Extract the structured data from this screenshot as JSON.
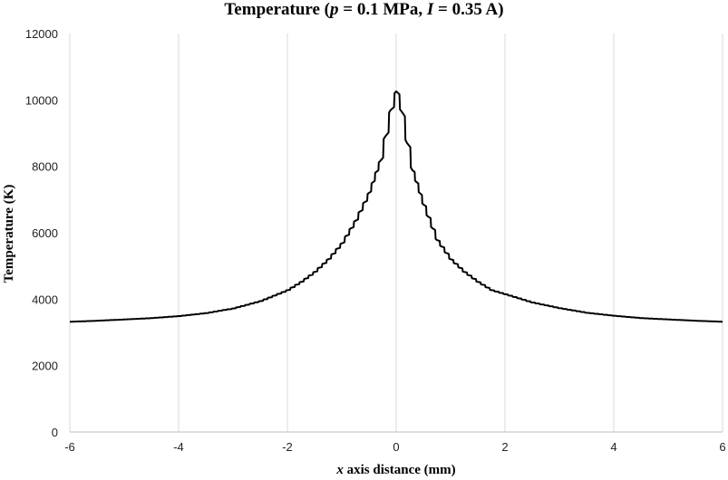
{
  "chart_data": {
    "type": "line",
    "title": {
      "prefix": "Temperature  (",
      "p_symbol": "p",
      "p_part": " = 0.1 MPa, ",
      "i_symbol": "I",
      "i_part": " = 0.35 A)"
    },
    "xlabel": {
      "symbol": "x",
      "text": " axis distance (mm)"
    },
    "ylabel": "Temperature (K)",
    "xlim": [
      -6,
      6
    ],
    "ylim": [
      0,
      12000
    ],
    "x_ticks": [
      -6,
      -4,
      -2,
      0,
      2,
      4,
      6
    ],
    "y_ticks": [
      0,
      2000,
      4000,
      6000,
      8000,
      10000,
      12000
    ],
    "grid": "vertical",
    "legend": "none",
    "line_color": "#000000",
    "series": [
      {
        "x": [
          -6,
          -5.5,
          -5,
          -4.5,
          -4,
          -3.5,
          -3,
          -2.5,
          -2,
          -1.75,
          -1.5,
          -1.25,
          -1,
          -0.75,
          -0.5,
          -0.3,
          -0.2,
          -0.1,
          0,
          0.1,
          0.2,
          0.3,
          0.5,
          0.75,
          1,
          1.25,
          1.5,
          1.75,
          2,
          2.5,
          3,
          3.5,
          4,
          4.5,
          5,
          5.5,
          6
        ],
        "y": [
          3320,
          3350,
          3390,
          3430,
          3490,
          3580,
          3720,
          3940,
          4270,
          4520,
          4820,
          5200,
          5680,
          6360,
          7200,
          8150,
          8900,
          9700,
          10260,
          9650,
          8700,
          7880,
          6850,
          5780,
          5200,
          4820,
          4520,
          4270,
          4150,
          3900,
          3730,
          3590,
          3500,
          3430,
          3390,
          3350,
          3320
        ]
      }
    ]
  }
}
